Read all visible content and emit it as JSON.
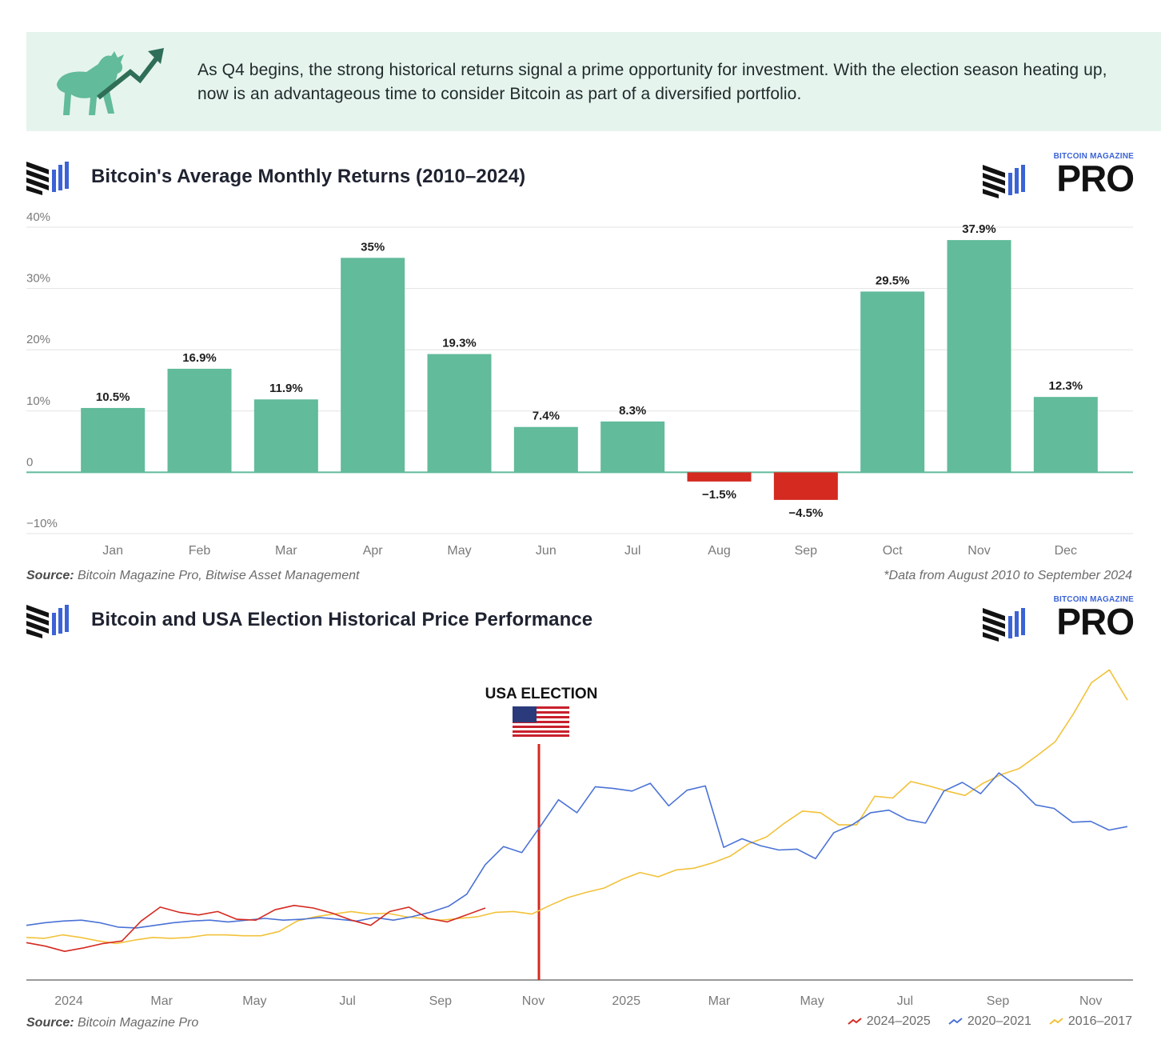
{
  "banner": {
    "text": "As Q4 begins, the strong historical returns signal a prime opportunity for investment. With the election season heating up, now is an advantageous time to consider Bitcoin as part of a diversified portfolio.",
    "icon": "bull-arrow-icon"
  },
  "brand": {
    "sub": "BITCOIN MAGAZINE",
    "pro": "PRO"
  },
  "colors": {
    "positive": "#62bb9b",
    "negative": "#d42a20",
    "s2024": "#d42a20",
    "s2020": "#4a72d6",
    "s2016": "#f2c23a",
    "election_line": "#d42a20"
  },
  "chart1": {
    "title": "Bitcoin's Average Monthly Returns (2010–2024)",
    "source_label": "Source:",
    "source_text": " Bitcoin Magazine Pro, Bitwise Asset Management",
    "note": "*Data from August 2010 to September 2024"
  },
  "chart2": {
    "title": "Bitcoin and USA Election Historical Price Performance",
    "election_label": "USA ELECTION",
    "source_label": "Source:",
    "source_text": " Bitcoin Magazine Pro"
  },
  "chart_data": [
    {
      "type": "bar",
      "title": "Bitcoin's Average Monthly Returns (2010–2024)",
      "categories": [
        "Jan",
        "Feb",
        "Mar",
        "Apr",
        "May",
        "Jun",
        "Jul",
        "Aug",
        "Sep",
        "Oct",
        "Nov",
        "Dec"
      ],
      "values": [
        10.5,
        16.9,
        11.9,
        35,
        19.3,
        7.4,
        8.3,
        -1.5,
        -4.5,
        29.5,
        37.9,
        12.3
      ],
      "value_labels": [
        "10.5%",
        "16.9%",
        "11.9%",
        "35%",
        "19.3%",
        "7.4%",
        "8.3%",
        "−1.5%",
        "−4.5%",
        "29.5%",
        "37.9%",
        "12.3%"
      ],
      "ylim": [
        -10,
        40
      ],
      "yticks": [
        40,
        30,
        20,
        10,
        0,
        -10
      ],
      "ytick_labels": [
        "40%",
        "30%",
        "20%",
        "10%",
        "0",
        "−10%"
      ],
      "grid": true
    },
    {
      "type": "line",
      "title": "Bitcoin and USA Election Historical Price Performance",
      "x_tick_labels": [
        "2024",
        "Mar",
        "May",
        "Jul",
        "Sep",
        "Nov",
        "2025",
        "Mar",
        "May",
        "Jul",
        "Sep",
        "Nov"
      ],
      "election_at_tick_index": 5,
      "series": [
        {
          "name": "2024–2025",
          "values": [
            2.0,
            1.6,
            1.0,
            1.4,
            1.9,
            2.2,
            4.5,
            6.1,
            5.5,
            5.2,
            5.6,
            4.7,
            4.6,
            5.8,
            6.3,
            6.0,
            5.4,
            4.6,
            4.0,
            5.6,
            6.1,
            4.8,
            4.4,
            5.2,
            6.0
          ]
        },
        {
          "name": "2020–2021",
          "values": [
            4.0,
            4.3,
            4.5,
            4.6,
            4.3,
            3.8,
            3.7,
            4.0,
            4.3,
            4.5,
            4.6,
            4.4,
            4.6,
            4.8,
            4.6,
            4.7,
            4.9,
            4.7,
            4.5,
            4.9,
            4.6,
            5.0,
            5.5,
            6.2,
            7.6,
            11.0,
            13.1,
            12.4,
            15.4,
            18.5,
            17.0,
            20.0,
            19.8,
            19.5,
            20.4,
            17.8,
            19.6,
            20.1,
            13.0,
            14.0,
            13.2,
            12.7,
            12.8,
            11.7,
            14.7,
            15.6,
            17.0,
            17.3,
            16.2,
            15.8,
            19.5,
            20.5,
            19.2,
            21.6,
            20.0,
            17.9,
            17.5,
            15.9,
            16.0,
            15.0,
            15.4
          ]
        },
        {
          "name": "2016–2017",
          "values": [
            2.6,
            2.5,
            2.9,
            2.6,
            2.2,
            1.9,
            2.3,
            2.6,
            2.5,
            2.6,
            2.9,
            2.9,
            2.8,
            2.8,
            3.3,
            4.5,
            5.0,
            5.3,
            5.6,
            5.3,
            5.4,
            5.0,
            4.8,
            4.6,
            4.8,
            5.0,
            5.5,
            5.6,
            5.3,
            6.3,
            7.2,
            7.8,
            8.3,
            9.3,
            10.1,
            9.6,
            10.4,
            10.6,
            11.2,
            12.0,
            13.4,
            14.2,
            15.8,
            17.2,
            17.0,
            15.6,
            15.6,
            18.9,
            18.7,
            20.6,
            20.1,
            19.5,
            19.0,
            20.4,
            21.4,
            22.1,
            23.6,
            25.2,
            28.4,
            32.0,
            33.5,
            30.0
          ]
        }
      ]
    }
  ],
  "legend": [
    {
      "label": "2024–2025"
    },
    {
      "label": "2020–2021"
    },
    {
      "label": "2016–2017"
    }
  ]
}
